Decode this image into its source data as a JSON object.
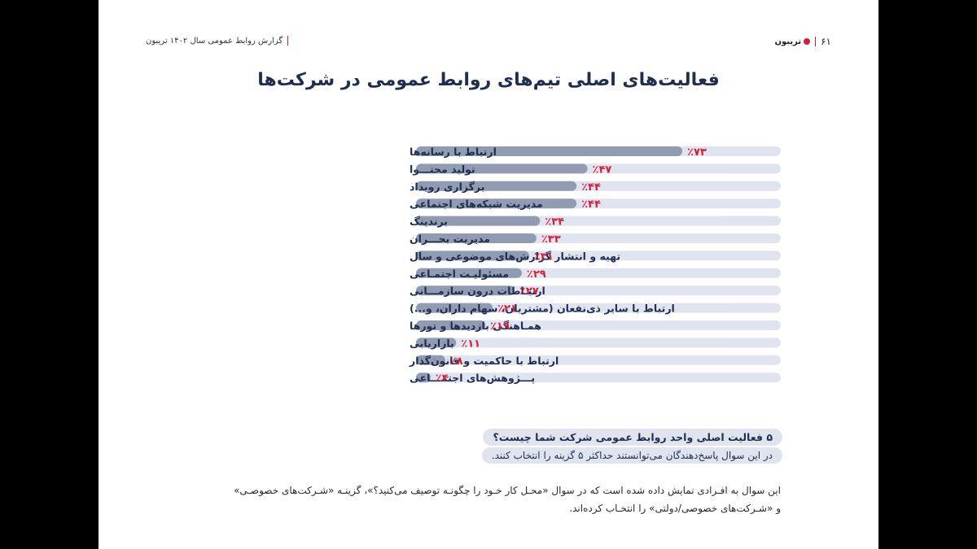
{
  "header": {
    "page_number": "۶۱",
    "brand": "تریبون",
    "report_title": "گزارش روابط عمومی سال ۱۴۰۲ تریبون"
  },
  "colors": {
    "bar_fill": "#919cb3",
    "bar_track": "#dfe4ef",
    "value_label": "#d21f3c",
    "title": "#1f2d4e"
  },
  "chart_data": {
    "type": "bar",
    "orientation": "horizontal",
    "title": "فعالیت‌های اصلی تیم‌های روابط عمومی در شرکت‌ها",
    "xlim": [
      0,
      100
    ],
    "unit": "%",
    "categories": [
      "ارتباط با رسانه‌ها",
      "تولید محتـــوا",
      "برگزاری رویداد",
      "مدیریت شبکه‌های اجتماعی",
      "برندینگ",
      "مدیریت بحـــران",
      "تهیه و انتشار گزارش‌های موضوعی و سال",
      "مسئولیـت اجتمـاعی",
      "ارتبـاطات درون سازمـــانی",
      "ارتباط با سایر ذی‌نفعان (مشتریان، سهام داران، و...)",
      "همـاهنگی بازدیدها و تورها",
      "بازاریابی",
      "ارتباط با حاکمیت و قانون‌گذار",
      "پـــژوهش‌های اجتمـــاعی"
    ],
    "values": [
      73,
      47,
      44,
      44,
      34,
      33,
      31,
      29,
      27,
      21,
      19,
      11,
      8,
      4
    ],
    "value_labels": [
      "٪۷۳",
      "٪۴۷",
      "٪۴۴",
      "٪۴۴",
      "٪۳۴",
      "٪۳۳",
      "٪۳۱",
      "٪۲۹",
      "٪۲۷",
      "٪۲۱",
      "٪۱۹",
      "٪۱۱",
      "٪۸",
      "٪۴"
    ]
  },
  "question": {
    "text": "۵ فعالیت اصلی واحد روابط عمومی شرکت شما چیست؟",
    "instruction": "در این سوال پاسخ‌دهندگان می‌توانستند حداکثر ۵ گزینه را انتخاب کنند."
  },
  "note": {
    "line1": "این سوال به افـرادی نمایش داده شده است که در سوال «محـل کار خـود را چگونـه توصیف می‌کنید؟»، گزینـه «شـرکت‌های خصوصـی»",
    "line2": "و «شـرکت‌های خصوصی/دولتی» را انتخـاب کرده‌اند."
  }
}
